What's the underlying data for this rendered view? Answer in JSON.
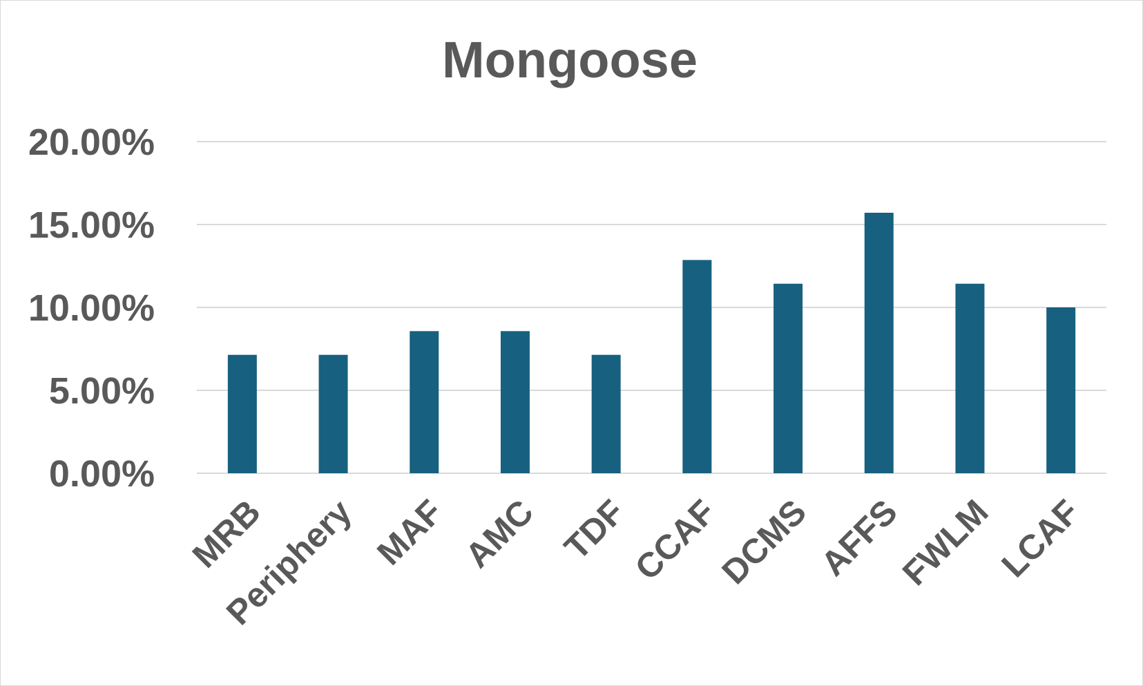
{
  "chart_data": {
    "type": "bar",
    "title": "Mongoose",
    "xlabel": "",
    "ylabel": "",
    "categories": [
      "MRB",
      "Periphery",
      "MAF",
      "AMC",
      "TDF",
      "CCAF",
      "DCMS",
      "AFFS",
      "FWLM",
      "LCAF"
    ],
    "values": [
      0.0714,
      0.0714,
      0.0857,
      0.0857,
      0.0714,
      0.1286,
      0.1143,
      0.1571,
      0.1143,
      0.1
    ],
    "ylim": [
      0,
      0.2
    ],
    "yticks": [
      0,
      0.05,
      0.1,
      0.15,
      0.2
    ],
    "ytick_labels": [
      "0.00%",
      "5.00%",
      "10.00%",
      "15.00%",
      "20.00%"
    ],
    "grid": true,
    "legend": "none",
    "bar_color": "#17607f",
    "grid_color": "#d9d9d9",
    "text_color": "#595959"
  }
}
